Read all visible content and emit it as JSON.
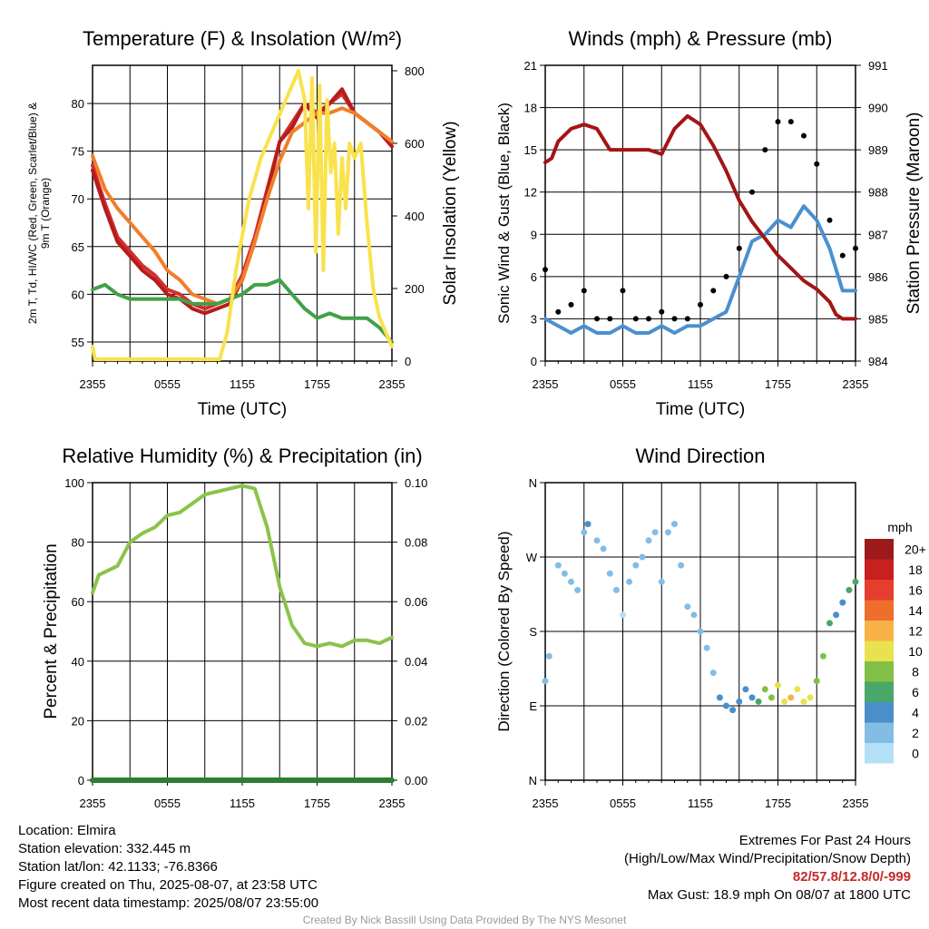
{
  "chart_data": [
    {
      "type": "line",
      "title": "Temperature (F) & Insolation (W/m²)",
      "xlabel": "Time (UTC)",
      "ylabel": "2m T, Td, HI/WC (Red, Green, Scarlet/Blue) & 9m T (Orange)",
      "ylabel_right": "Solar Insolation (Yellow)",
      "x_ticks": [
        "2355",
        "0555",
        "1155",
        "1755",
        "2355"
      ],
      "ylim": [
        53,
        84
      ],
      "y_ticks": [
        "55",
        "60",
        "65",
        "70",
        "75",
        "80"
      ],
      "ylim_right": [
        0,
        815
      ],
      "y_ticks_right": [
        "0",
        "200",
        "400",
        "600",
        "800"
      ],
      "grid": true,
      "series": [
        {
          "name": "2m T",
          "color": "#d32f2f",
          "x": [
            0,
            1,
            2,
            3,
            4,
            5,
            6,
            7,
            8,
            9,
            10,
            11,
            12,
            13,
            14,
            15,
            16,
            17,
            18,
            19,
            20,
            21,
            22,
            23,
            24
          ],
          "values": [
            73.5,
            69.5,
            66,
            64.5,
            63,
            62,
            60.5,
            60,
            59,
            58.5,
            59,
            59.5,
            62,
            66,
            71,
            76,
            78,
            80,
            79,
            80,
            81,
            79,
            78,
            77,
            75.5
          ]
        },
        {
          "name": "HI/WC",
          "color": "#b71c1c",
          "x": [
            0,
            1,
            2,
            3,
            4,
            5,
            6,
            7,
            8,
            9,
            10,
            11,
            12,
            13,
            14,
            15,
            16,
            17,
            18,
            19,
            20,
            21,
            22,
            23,
            24
          ],
          "values": [
            73,
            69,
            65.5,
            64,
            62.5,
            61.5,
            60,
            59.5,
            58.5,
            58,
            58.5,
            59,
            61.5,
            65.5,
            70.5,
            76,
            77.5,
            80,
            78.5,
            80,
            81.5,
            79,
            78,
            77,
            75.5
          ]
        },
        {
          "name": "9m T",
          "color": "#f07f2a",
          "x": [
            0,
            1,
            2,
            3,
            4,
            5,
            6,
            7,
            8,
            9,
            10,
            11,
            12,
            13,
            14,
            15,
            16,
            17,
            18,
            19,
            20,
            21,
            22,
            23,
            24
          ],
          "values": [
            74.5,
            71,
            69,
            67.5,
            66,
            64.5,
            62.5,
            61.5,
            60,
            59.5,
            59,
            59.5,
            61.5,
            65.5,
            70,
            74,
            77,
            78,
            79,
            79,
            79.5,
            79,
            78,
            77,
            76
          ]
        },
        {
          "name": "Td",
          "color": "#43a047",
          "x": [
            0,
            1,
            2,
            3,
            4,
            5,
            6,
            7,
            8,
            9,
            10,
            11,
            12,
            13,
            14,
            15,
            16,
            17,
            18,
            19,
            20,
            21,
            22,
            23,
            24
          ],
          "values": [
            60.5,
            61,
            60,
            59.5,
            59.5,
            59.5,
            59.5,
            59.5,
            59,
            59,
            59,
            59.5,
            60,
            61,
            61,
            61.5,
            60,
            58.5,
            57.5,
            58,
            57.5,
            57.5,
            57.5,
            56.5,
            55
          ]
        },
        {
          "name": "Solar Insolation",
          "color": "#f9e24c",
          "axis": "right",
          "x": [
            0,
            0.2,
            10.2,
            10.8,
            11.5,
            12.5,
            13.5,
            14.5,
            15.5,
            16,
            16.5,
            17,
            17.3,
            17.6,
            17.9,
            18.2,
            18.5,
            18.8,
            19.1,
            19.4,
            19.7,
            20,
            20.3,
            20.6,
            21,
            21.5,
            22,
            22.5,
            23,
            23.5,
            24
          ],
          "values": [
            40,
            5,
            5,
            80,
            250,
            440,
            560,
            640,
            720,
            760,
            800,
            720,
            420,
            780,
            300,
            760,
            250,
            720,
            520,
            600,
            350,
            560,
            420,
            600,
            560,
            600,
            380,
            200,
            120,
            80,
            40
          ]
        }
      ]
    },
    {
      "type": "line",
      "title": "Winds (mph) & Pressure (mb)",
      "xlabel": "Time (UTC)",
      "ylabel": "Sonic Wind & Gust (Blue, Black)",
      "ylabel_right": "Station Pressure (Maroon)",
      "x_ticks": [
        "2355",
        "0555",
        "1155",
        "1755",
        "2355"
      ],
      "ylim": [
        0,
        21
      ],
      "y_ticks": [
        "0",
        "3",
        "6",
        "9",
        "12",
        "15",
        "18",
        "21"
      ],
      "ylim_right": [
        984,
        991
      ],
      "y_ticks_right": [
        "984",
        "985",
        "986",
        "987",
        "988",
        "989",
        "990",
        "991"
      ],
      "grid": true,
      "series": [
        {
          "name": "Sonic Wind",
          "color": "#4a90d0",
          "x": [
            0,
            1,
            2,
            3,
            4,
            5,
            6,
            7,
            8,
            9,
            10,
            11,
            12,
            13,
            14,
            15,
            16,
            17,
            18,
            19,
            20,
            21,
            22,
            23,
            24
          ],
          "values": [
            3,
            2.5,
            2,
            2.5,
            2,
            2,
            2.5,
            2,
            2,
            2.5,
            2,
            2.5,
            2.5,
            3,
            3.5,
            6,
            8.5,
            9,
            10,
            9.5,
            11,
            10,
            8,
            5,
            5
          ]
        },
        {
          "name": "Gust",
          "color": "#000000",
          "marker": "dot",
          "x": [
            0,
            1,
            2,
            3,
            4,
            5,
            6,
            7,
            8,
            9,
            10,
            11,
            12,
            13,
            14,
            15,
            16,
            17,
            18,
            19,
            20,
            21,
            22,
            23,
            24
          ],
          "values": [
            6.5,
            3.5,
            4,
            5,
            3,
            3,
            5,
            3,
            3,
            3.5,
            3,
            3,
            4,
            5,
            6,
            8,
            12,
            15,
            17,
            17,
            16,
            14,
            10,
            7.5,
            8
          ]
        },
        {
          "name": "Station Pressure",
          "color": "#a31515",
          "axis": "right",
          "x": [
            0,
            0.5,
            1,
            2,
            3,
            4,
            5,
            6,
            7,
            8,
            9,
            10,
            11,
            12,
            13,
            14,
            15,
            16,
            17,
            18,
            19,
            20,
            21,
            22,
            22.5,
            23,
            24
          ],
          "values": [
            988.7,
            988.8,
            989.2,
            989.5,
            989.6,
            989.5,
            989.0,
            989.0,
            989.0,
            989.0,
            988.9,
            989.5,
            989.8,
            989.6,
            989.1,
            988.5,
            987.8,
            987.3,
            986.9,
            986.5,
            986.2,
            985.9,
            985.7,
            985.4,
            985.1,
            985.0,
            985.0
          ]
        }
      ]
    },
    {
      "type": "line",
      "title": "Relative Humidity (%) & Precipitation (in)",
      "xlabel": "",
      "ylabel": "Percent & Precipitation",
      "x_ticks": [
        "2355",
        "0555",
        "1155",
        "1755",
        "2355"
      ],
      "ylim": [
        0,
        100
      ],
      "y_ticks": [
        "0",
        "20",
        "40",
        "60",
        "80",
        "100"
      ],
      "ylim_right": [
        0,
        0.1
      ],
      "y_ticks_right": [
        "0.00",
        "0.02",
        "0.04",
        "0.06",
        "0.08",
        "0.10"
      ],
      "grid": true,
      "series": [
        {
          "name": "Relative Humidity",
          "color": "#8bc34a",
          "x": [
            0,
            0.5,
            1,
            2,
            3,
            4,
            5,
            6,
            7,
            8,
            9,
            10,
            11,
            12,
            13,
            14,
            15,
            16,
            17,
            18,
            19,
            20,
            21,
            22,
            23,
            24
          ],
          "values": [
            63,
            69,
            70,
            72,
            80,
            83,
            85,
            89,
            90,
            93,
            96,
            97,
            98,
            99,
            98,
            85,
            65,
            52,
            46,
            45,
            46,
            45,
            47,
            47,
            46,
            48
          ]
        },
        {
          "name": "Precipitation",
          "color": "#2e7d32",
          "axis": "right",
          "x": [
            0,
            24
          ],
          "values": [
            0,
            0
          ]
        }
      ]
    },
    {
      "type": "scatter",
      "title": "Wind Direction",
      "xlabel": "",
      "ylabel": "Direction (Colored By Speed)",
      "x_ticks": [
        "2355",
        "0555",
        "1155",
        "1755",
        "2355"
      ],
      "y_ticks": [
        "N",
        "E",
        "S",
        "W",
        "N"
      ],
      "ylim": [
        0,
        360
      ],
      "grid": true,
      "colorbar": {
        "title": "mph",
        "labels": [
          "0",
          "2",
          "4",
          "6",
          "8",
          "10",
          "12",
          "14",
          "16",
          "18",
          "20+"
        ],
        "colors": [
          "#b3e0f7",
          "#83bde5",
          "#4a8fc9",
          "#48a869",
          "#82c045",
          "#e7e24d",
          "#f8b146",
          "#ef6e2c",
          "#e53e2e",
          "#c8201f",
          "#9c1a1a"
        ]
      },
      "x": [
        0,
        0.3,
        1,
        1.5,
        2,
        2.5,
        3,
        3.3,
        4,
        4.5,
        5,
        5.5,
        6,
        6.5,
        7,
        7.5,
        8,
        8.5,
        9,
        9.5,
        10,
        10.5,
        11,
        11.5,
        12,
        12.5,
        13,
        13.5,
        14,
        14.5,
        15,
        15.5,
        16,
        16.5,
        17,
        17.5,
        18,
        18.5,
        19,
        19.5,
        20,
        20.5,
        21,
        21.5,
        22,
        22.5,
        23,
        23.5,
        24
      ],
      "values": [
        120,
        150,
        260,
        250,
        240,
        230,
        300,
        310,
        290,
        280,
        250,
        230,
        200,
        240,
        260,
        270,
        290,
        300,
        240,
        300,
        310,
        260,
        210,
        200,
        180,
        160,
        130,
        100,
        90,
        85,
        95,
        110,
        100,
        95,
        110,
        100,
        115,
        95,
        100,
        110,
        95,
        100,
        120,
        150,
        190,
        200,
        215,
        230,
        240
      ],
      "speed_mph": [
        3,
        3,
        2,
        2,
        3,
        3,
        3,
        4,
        3,
        2,
        2,
        3,
        1,
        2,
        2,
        2,
        2,
        3,
        3,
        3,
        3,
        3,
        3,
        3,
        3,
        3,
        3,
        4,
        4,
        4,
        4,
        5,
        5,
        6,
        8,
        9,
        10,
        10,
        12,
        10,
        11,
        10,
        9,
        8,
        6,
        4,
        5,
        6,
        6
      ]
    }
  ],
  "info": {
    "location": "Location: Elmira",
    "elevation": "Station elevation: 332.445 m",
    "latlon": "Station lat/lon: 42.1133; -76.8366",
    "created": "Figure created on Thu, 2025-08-07, at 23:58 UTC",
    "recent": "Most recent data timestamp: 2025/08/07 23:55:00"
  },
  "extremes": {
    "title": "Extremes For Past 24 Hours",
    "subtitle": "(High/Low/Max Wind/Precipitation/Snow Depth)",
    "values": "82/57.8/12.8/0/-999",
    "gust": "Max Gust: 18.9 mph On 08/07 at 1800 UTC"
  },
  "credit": "Created By Nick Bassill Using Data Provided By The NYS Mesonet"
}
